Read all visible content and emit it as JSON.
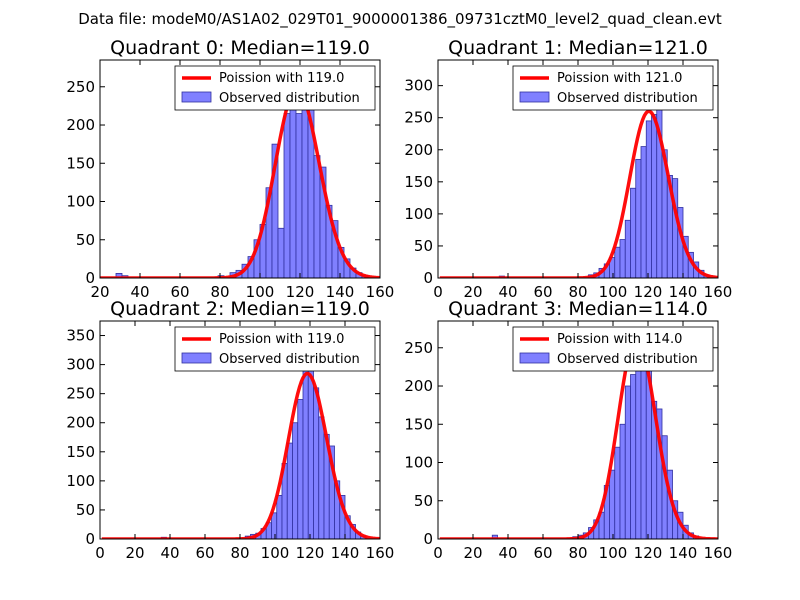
{
  "figure_title": "Data file: modeM0/AS1A02_029T01_9000001386_09731cztM0_level2_quad_clean.evt",
  "colors": {
    "curve": "#ff0000",
    "hist_fill": "#8080ff",
    "hist_edge": "#3030a0",
    "axes": "#000000",
    "background": "#ffffff"
  },
  "chart_data": [
    {
      "type": "bar",
      "title": "Quadrant 0: Median=119.0",
      "xlim": [
        20,
        160
      ],
      "ylim": [
        0,
        285
      ],
      "xticks": [
        20,
        40,
        60,
        80,
        100,
        120,
        140,
        160
      ],
      "yticks": [
        0,
        50,
        100,
        150,
        200,
        250
      ],
      "median": 119.0,
      "curve_label": "Poission with 119.0",
      "hist_label": "Observed distribution",
      "bin_width": 3,
      "bins": [
        [
          28,
          6
        ],
        [
          31,
          3
        ],
        [
          79,
          3
        ],
        [
          85,
          7
        ],
        [
          88,
          10
        ],
        [
          91,
          18
        ],
        [
          94,
          28
        ],
        [
          97,
          50
        ],
        [
          100,
          70
        ],
        [
          103,
          118
        ],
        [
          106,
          175
        ],
        [
          109,
          65
        ],
        [
          112,
          215
        ],
        [
          115,
          255
        ],
        [
          118,
          215
        ],
        [
          121,
          240
        ],
        [
          124,
          220
        ],
        [
          127,
          160
        ],
        [
          130,
          145
        ],
        [
          133,
          95
        ],
        [
          136,
          75
        ],
        [
          139,
          40
        ],
        [
          142,
          25
        ],
        [
          145,
          13
        ],
        [
          148,
          7
        ],
        [
          151,
          3
        ]
      ]
    },
    {
      "type": "bar",
      "title": "Quadrant 1: Median=121.0",
      "xlim": [
        0,
        160
      ],
      "ylim": [
        0,
        340
      ],
      "xticks": [
        0,
        20,
        40,
        60,
        80,
        100,
        120,
        140,
        160
      ],
      "yticks": [
        0,
        50,
        100,
        150,
        200,
        250,
        300
      ],
      "median": 121.0,
      "curve_label": "Poission with 121.0",
      "hist_label": "Observed distribution",
      "bin_width": 3,
      "bins": [
        [
          35,
          3
        ],
        [
          86,
          5
        ],
        [
          89,
          8
        ],
        [
          92,
          15
        ],
        [
          95,
          22
        ],
        [
          98,
          32
        ],
        [
          101,
          48
        ],
        [
          104,
          60
        ],
        [
          107,
          90
        ],
        [
          110,
          140
        ],
        [
          113,
          185
        ],
        [
          116,
          205
        ],
        [
          119,
          245
        ],
        [
          122,
          255
        ],
        [
          125,
          305
        ],
        [
          128,
          200
        ],
        [
          131,
          160
        ],
        [
          134,
          155
        ],
        [
          137,
          110
        ],
        [
          140,
          65
        ],
        [
          143,
          40
        ],
        [
          146,
          25
        ],
        [
          149,
          12
        ],
        [
          152,
          5
        ]
      ]
    },
    {
      "type": "bar",
      "title": "Quadrant 2: Median=119.0",
      "xlim": [
        0,
        160
      ],
      "ylim": [
        0,
        375
      ],
      "xticks": [
        0,
        20,
        40,
        60,
        80,
        100,
        120,
        140,
        160
      ],
      "yticks": [
        0,
        50,
        100,
        150,
        200,
        250,
        300,
        350
      ],
      "median": 119.0,
      "curve_label": "Poission with 119.0",
      "hist_label": "Observed distribution",
      "bin_width": 3,
      "bins": [
        [
          35,
          3
        ],
        [
          83,
          5
        ],
        [
          86,
          8
        ],
        [
          89,
          10
        ],
        [
          92,
          18
        ],
        [
          95,
          28
        ],
        [
          98,
          45
        ],
        [
          101,
          75
        ],
        [
          104,
          130
        ],
        [
          107,
          165
        ],
        [
          110,
          200
        ],
        [
          113,
          240
        ],
        [
          116,
          300
        ],
        [
          119,
          300
        ],
        [
          122,
          260
        ],
        [
          125,
          210
        ],
        [
          128,
          180
        ],
        [
          131,
          160
        ],
        [
          134,
          100
        ],
        [
          137,
          75
        ],
        [
          140,
          40
        ],
        [
          143,
          25
        ],
        [
          146,
          12
        ],
        [
          149,
          5
        ]
      ]
    },
    {
      "type": "bar",
      "title": "Quadrant 3: Median=114.0",
      "xlim": [
        0,
        160
      ],
      "ylim": [
        0,
        285
      ],
      "xticks": [
        0,
        20,
        40,
        60,
        80,
        100,
        120,
        140,
        160
      ],
      "yticks": [
        0,
        50,
        100,
        150,
        200,
        250
      ],
      "median": 114.0,
      "curve_label": "Poission with 114.0",
      "hist_label": "Observed distribution",
      "bin_width": 3,
      "bins": [
        [
          31,
          5
        ],
        [
          77,
          3
        ],
        [
          80,
          5
        ],
        [
          83,
          8
        ],
        [
          86,
          15
        ],
        [
          89,
          25
        ],
        [
          92,
          35
        ],
        [
          95,
          70
        ],
        [
          98,
          90
        ],
        [
          101,
          120
        ],
        [
          104,
          150
        ],
        [
          107,
          200
        ],
        [
          110,
          215
        ],
        [
          113,
          235
        ],
        [
          116,
          245
        ],
        [
          119,
          235
        ],
        [
          122,
          180
        ],
        [
          125,
          170
        ],
        [
          128,
          135
        ],
        [
          131,
          90
        ],
        [
          134,
          50
        ],
        [
          137,
          35
        ],
        [
          140,
          18
        ],
        [
          143,
          8
        ],
        [
          146,
          4
        ]
      ]
    }
  ]
}
